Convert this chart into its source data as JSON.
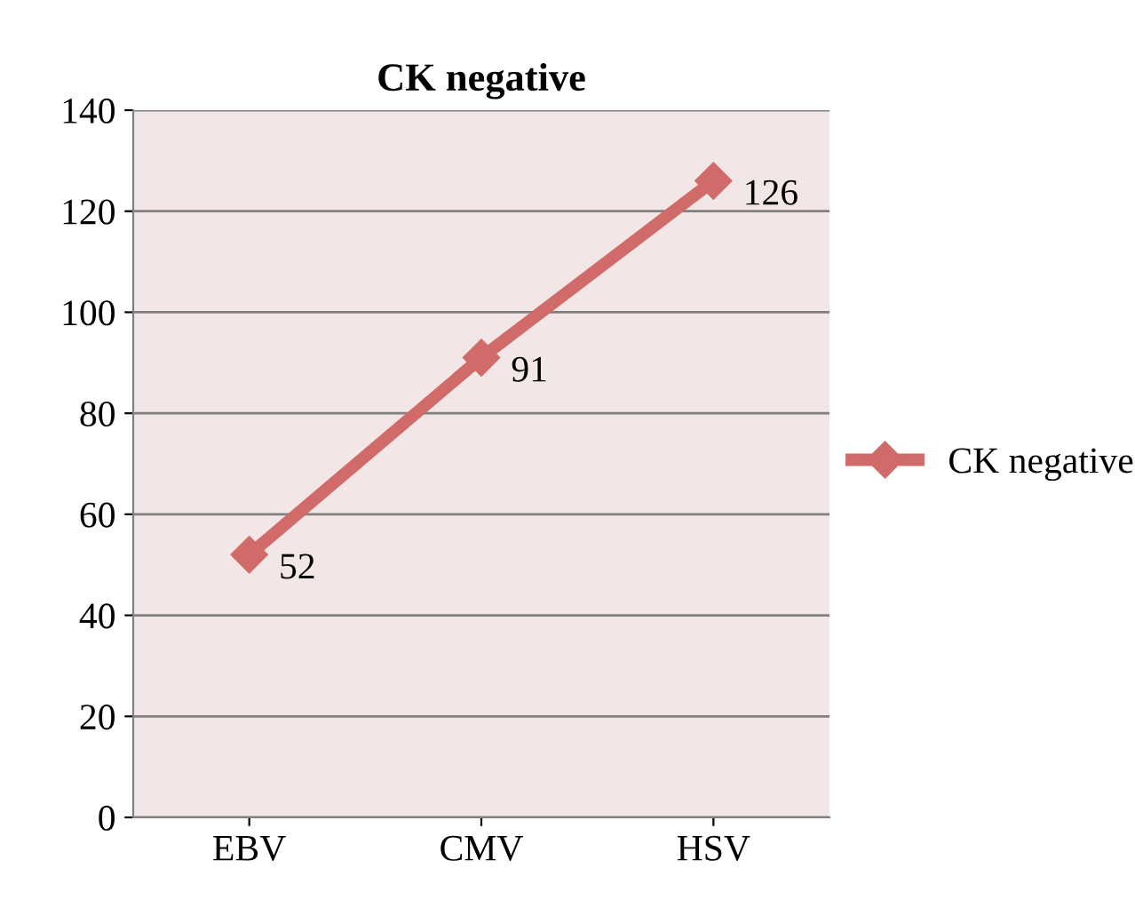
{
  "chart_data": {
    "type": "line",
    "title": "CK negative",
    "categories": [
      "EBV",
      "CMV",
      "HSV"
    ],
    "series": [
      {
        "name": "CK negative",
        "color": "#d06b6a",
        "values": [
          52,
          91,
          126
        ]
      }
    ],
    "ylim": [
      0,
      140
    ],
    "yticks": [
      0,
      20,
      40,
      60,
      80,
      100,
      120,
      140
    ],
    "grid": "y",
    "legend": "right",
    "marker": "diamond",
    "line_style": "solid",
    "data_labels": true
  }
}
